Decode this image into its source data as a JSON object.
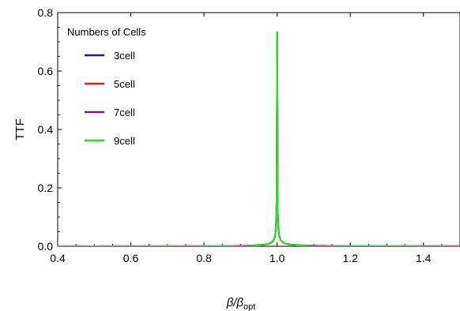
{
  "chart_data": {
    "type": "line",
    "title": "",
    "xlabel": "β/β",
    "xlabel_sub": "opt",
    "ylabel": "TTF",
    "xlim": [
      0.4,
      1.5
    ],
    "ylim": [
      0.0,
      0.8
    ],
    "x_ticks": [
      "0.4",
      "0.6",
      "0.8",
      "1.0",
      "1.2",
      "1.4"
    ],
    "x_tick_values": [
      0.4,
      0.6,
      0.8,
      1.0,
      1.2,
      1.4
    ],
    "y_ticks": [
      "0.0",
      "0.2",
      "0.4",
      "0.6",
      "0.8"
    ],
    "y_tick_values": [
      0.0,
      0.2,
      0.4,
      0.6,
      0.8
    ],
    "grid": false,
    "legend": {
      "title": "Numbers of Cells",
      "placement": "top-left"
    },
    "series": [
      {
        "name": "3cell",
        "color": "#1a14e6",
        "n": 3
      },
      {
        "name": "5cell",
        "color": "#e61a1a",
        "n": 5
      },
      {
        "name": "7cell",
        "color": "#7a1a8a",
        "n": 7
      },
      {
        "name": "9cell",
        "color": "#1ee61e",
        "n": 9
      }
    ]
  }
}
